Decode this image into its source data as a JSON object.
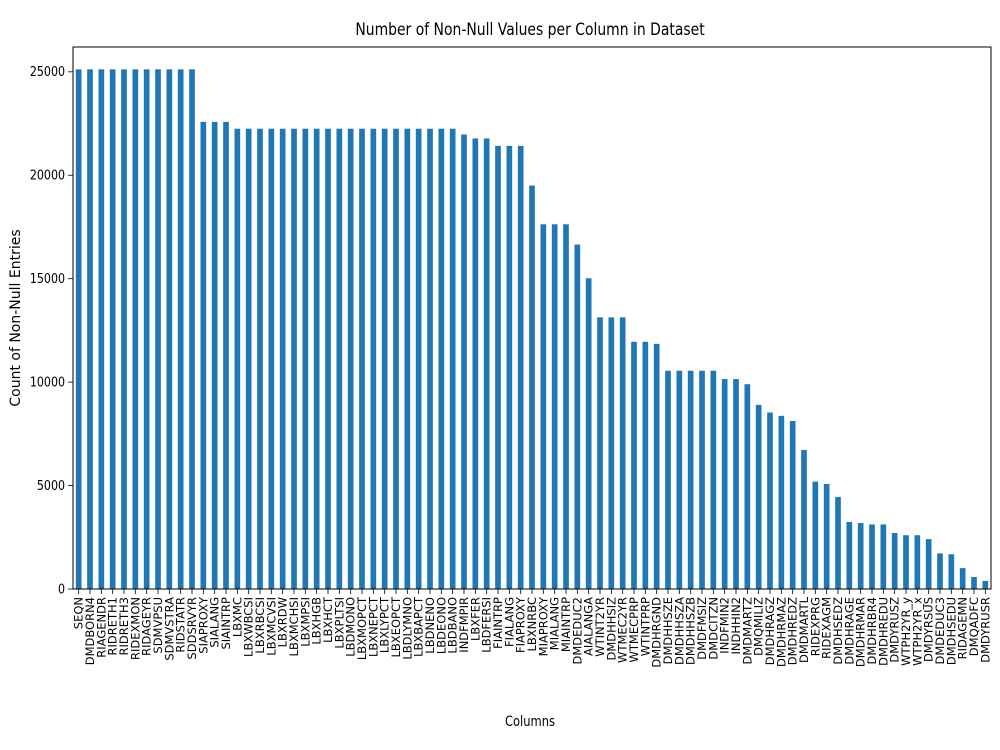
{
  "chart_data": {
    "type": "bar",
    "title": "Number of Non-Null Values per Column in Dataset",
    "xlabel": "Columns",
    "ylabel": "Count of Non-Null Entries",
    "ylim": [
      0,
      26200
    ],
    "yticks": [
      0,
      5000,
      10000,
      15000,
      20000,
      25000
    ],
    "bar_color": "#1f77b4",
    "grid": false,
    "categories": [
      "SEQN",
      "DMDBORN4",
      "RIAGENDR",
      "RIDRETH1",
      "RIDRETH3",
      "RIDEXMON",
      "RIDAGEYR",
      "SDMVPSU",
      "SDMVSTRA",
      "RIDSTATR",
      "SDDSRVYR",
      "SIAPROXY",
      "SIALANG",
      "SIAINTRP",
      "LBXMC",
      "LBXWBCSI",
      "LBXRBCSI",
      "LBXMCVSI",
      "LBXRDW",
      "LBXMCHSI",
      "LBXMPSI",
      "LBXHGB",
      "LBXHCT",
      "LBXPLTSI",
      "LBDMONO",
      "LBXMOPCT",
      "LBXNEPCT",
      "LBXLYPCT",
      "LBXEOPCT",
      "LBDLYMNO",
      "LBXBAPCT",
      "LBDNENO",
      "LBDEONO",
      "LBDBANO",
      "INDFMPIR",
      "LBXFER",
      "LBDFERSI",
      "FIAINTRP",
      "FIALANG",
      "FIAPROXY",
      "LBXNRBC",
      "MIAPROXY",
      "MIALANG",
      "MIAINTRP",
      "DMDEDUC2",
      "AIALANGA",
      "WTINT2YR",
      "DMDHHSIZ",
      "WTMEC2YR",
      "WTMECPRP",
      "WTINTPRP",
      "DMDHRGND",
      "DMDHHSZE",
      "DMDHHSZA",
      "DMDHHSZB",
      "DMDFMSIZ",
      "DMDCITZN",
      "INDFMIN2",
      "INDHHIN2",
      "DMDMARTZ",
      "DMQMILIZ",
      "DMDHRAGZ",
      "DMDHRMAZ",
      "DMDHREDZ",
      "DMDMARTL",
      "RIDEXPRG",
      "RIDEXAGM",
      "DMDHSEDZ",
      "DMDHRAGE",
      "DMDHRMAR",
      "DMDHRBR4",
      "DMDHREDU",
      "DMDYRUSZ",
      "WTPH2YR_y",
      "WTPH2YR_x",
      "DMDYRSUS",
      "DMDEDUC3",
      "DMDHSEDU",
      "RIDAGEMN",
      "DMQADFC",
      "DMDYRUSR"
    ],
    "values": [
      25120,
      25120,
      25120,
      25120,
      25120,
      25120,
      25120,
      25120,
      25120,
      25120,
      25120,
      22580,
      22580,
      22580,
      22250,
      22250,
      22250,
      22250,
      22250,
      22250,
      22250,
      22250,
      22250,
      22250,
      22250,
      22250,
      22250,
      22250,
      22250,
      22250,
      22250,
      22250,
      22250,
      22250,
      21970,
      21780,
      21780,
      21420,
      21420,
      21420,
      19500,
      17630,
      17630,
      17630,
      16650,
      15020,
      13130,
      13130,
      13130,
      11950,
      11950,
      11850,
      10550,
      10550,
      10550,
      10550,
      10550,
      10150,
      10150,
      9900,
      8900,
      8530,
      8370,
      8120,
      6720,
      5190,
      5080,
      4450,
      3240,
      3190,
      3120,
      3120,
      2710,
      2600,
      2600,
      2410,
      1720,
      1680,
      1010,
      580,
      390
    ]
  }
}
